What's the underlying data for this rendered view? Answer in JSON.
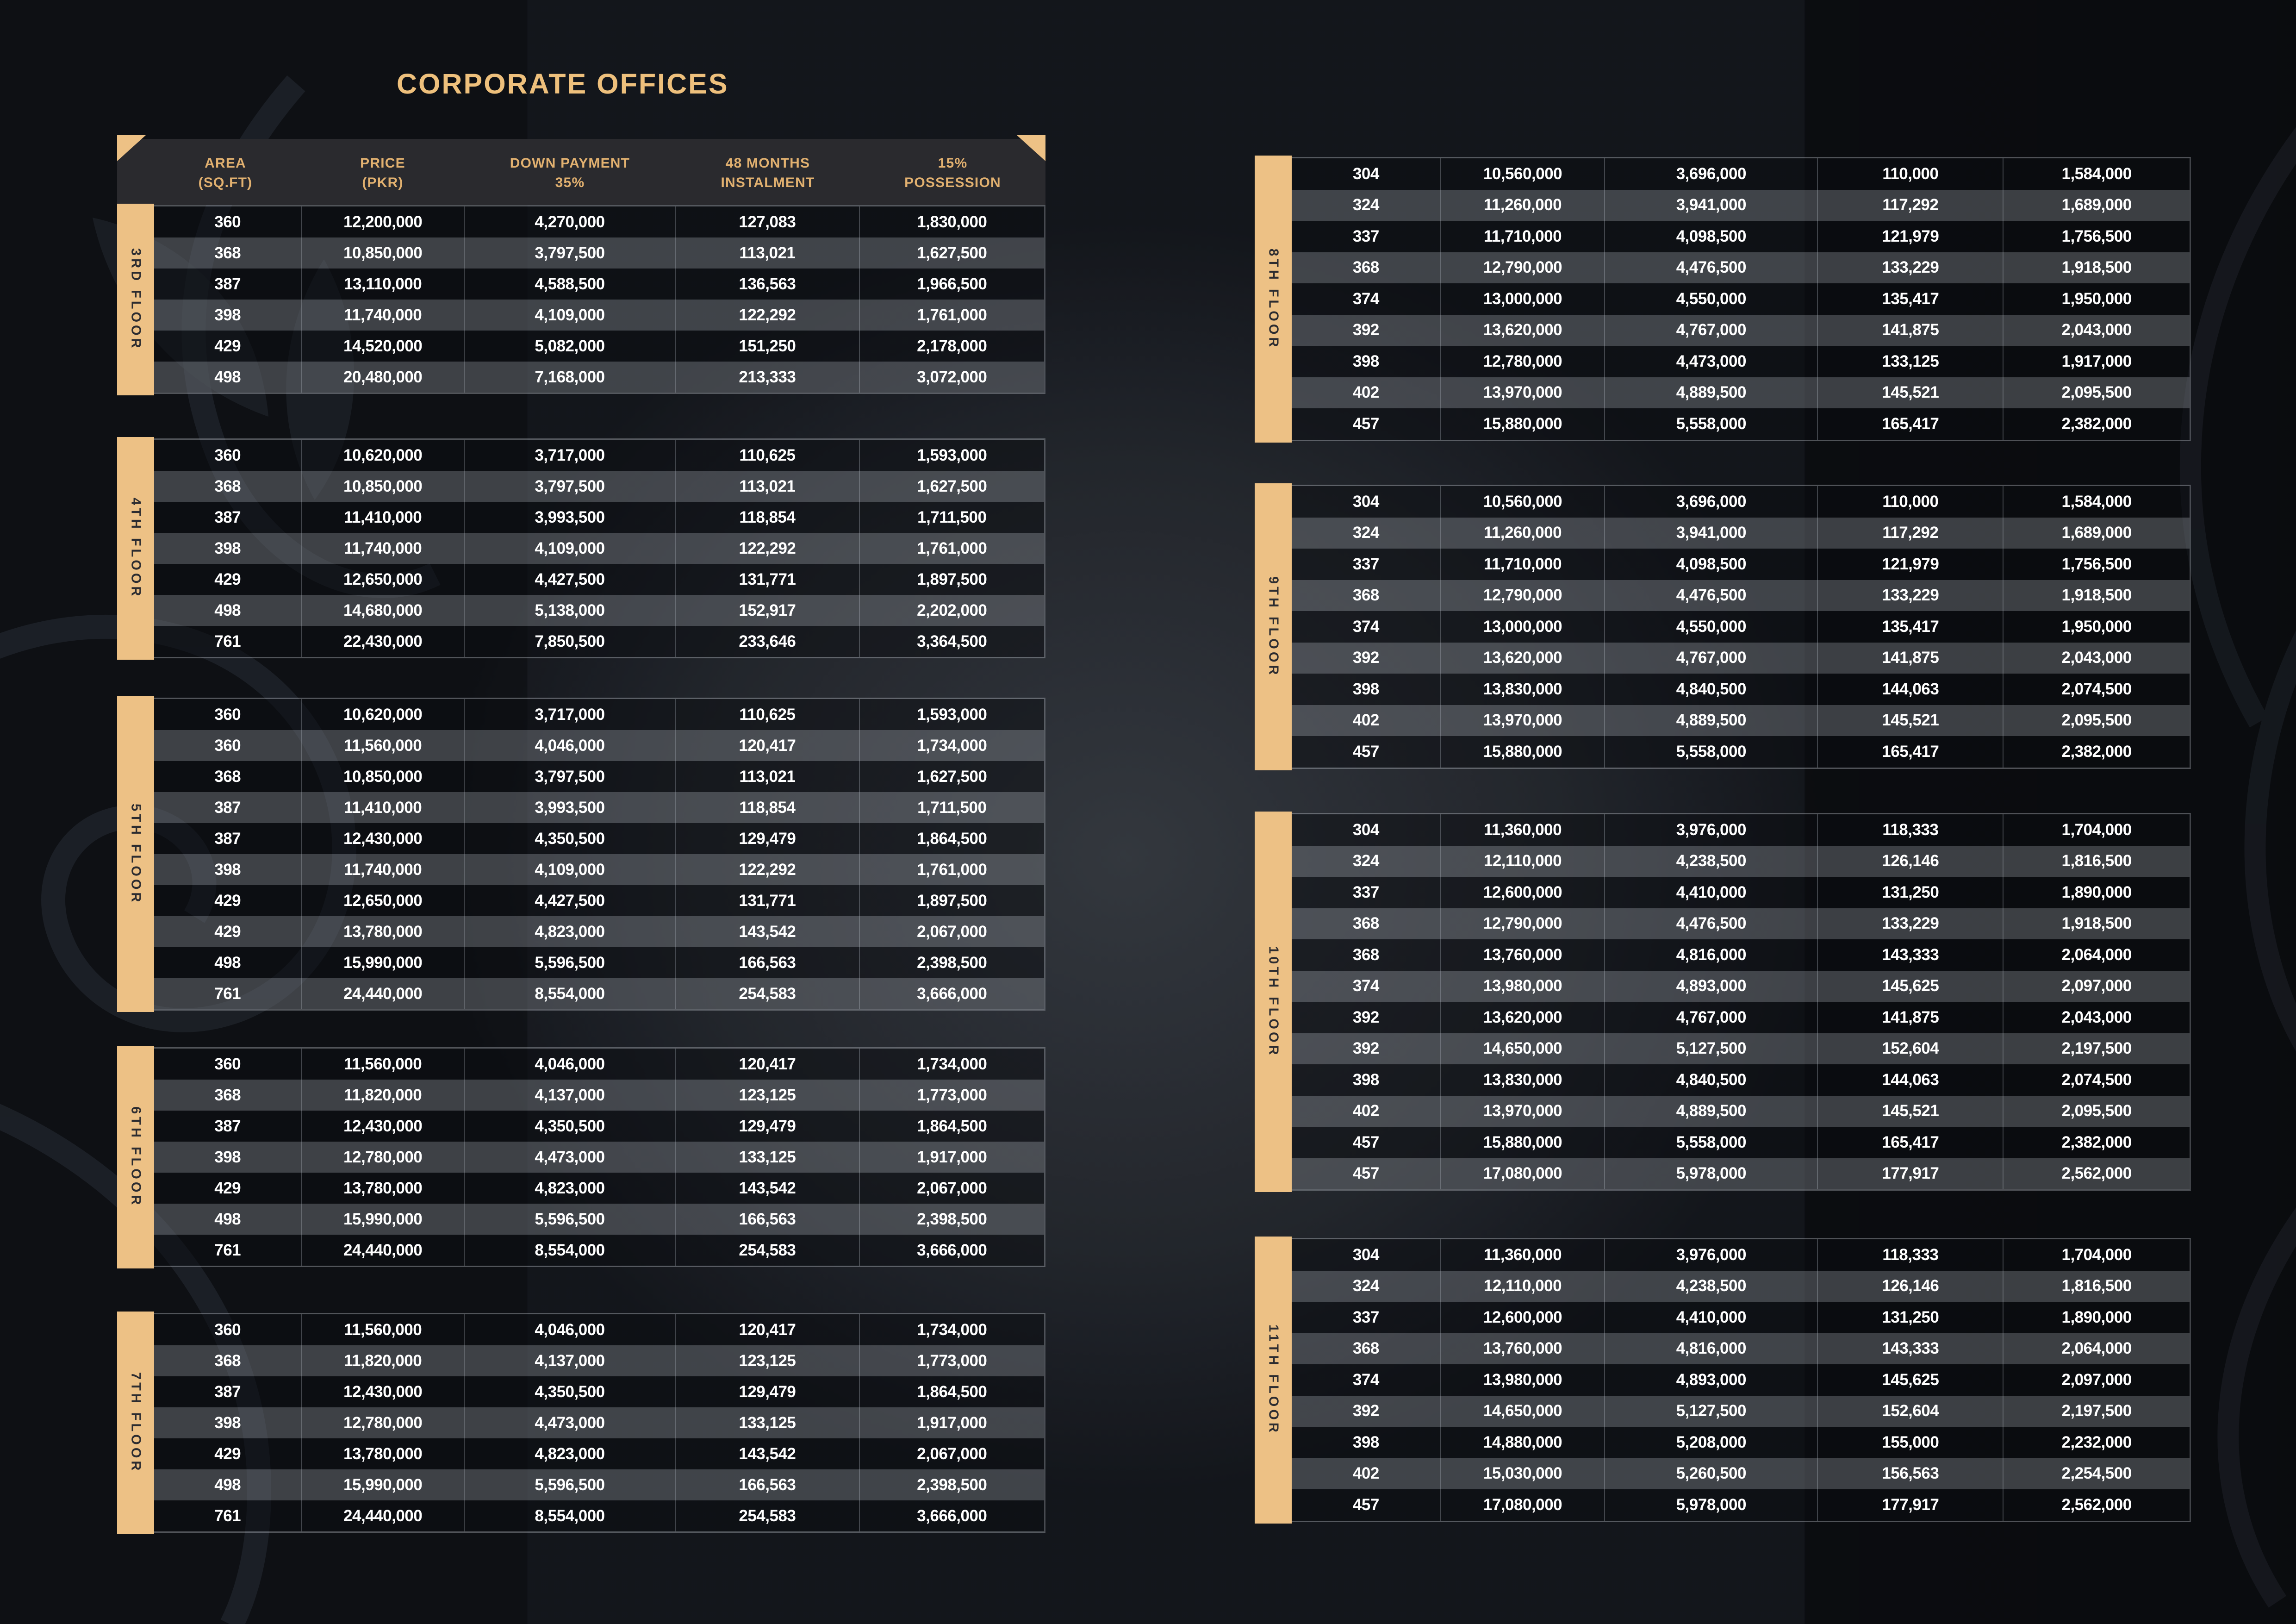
{
  "title": "CORPORATE OFFICES",
  "columns": [
    [
      "AREA",
      "(SQ.FT)"
    ],
    [
      "PRICE",
      "(PKR)"
    ],
    [
      "DOWN PAYMENT",
      "35%"
    ],
    [
      "48 MONTHS",
      "INSTALMENT"
    ],
    [
      "15%",
      "POSSESSION"
    ]
  ],
  "colors": {
    "accent_gold": "#edc185",
    "header_text_gold": "#e2b170",
    "title_gold": "#eec07c",
    "header_band": "#2a2a2e",
    "row_text": "#ffffff",
    "background": "#14171d"
  },
  "left_floors": [
    {
      "label": "3RD FLOOR",
      "rows": [
        [
          "360",
          "12,200,000",
          "4,270,000",
          "127,083",
          "1,830,000"
        ],
        [
          "368",
          "10,850,000",
          "3,797,500",
          "113,021",
          "1,627,500"
        ],
        [
          "387",
          "13,110,000",
          "4,588,500",
          "136,563",
          "1,966,500"
        ],
        [
          "398",
          "11,740,000",
          "4,109,000",
          "122,292",
          "1,761,000"
        ],
        [
          "429",
          "14,520,000",
          "5,082,000",
          "151,250",
          "2,178,000"
        ],
        [
          "498",
          "20,480,000",
          "7,168,000",
          "213,333",
          "3,072,000"
        ]
      ]
    },
    {
      "label": "4TH FLOOR",
      "rows": [
        [
          "360",
          "10,620,000",
          "3,717,000",
          "110,625",
          "1,593,000"
        ],
        [
          "368",
          "10,850,000",
          "3,797,500",
          "113,021",
          "1,627,500"
        ],
        [
          "387",
          "11,410,000",
          "3,993,500",
          "118,854",
          "1,711,500"
        ],
        [
          "398",
          "11,740,000",
          "4,109,000",
          "122,292",
          "1,761,000"
        ],
        [
          "429",
          "12,650,000",
          "4,427,500",
          "131,771",
          "1,897,500"
        ],
        [
          "498",
          "14,680,000",
          "5,138,000",
          "152,917",
          "2,202,000"
        ],
        [
          "761",
          "22,430,000",
          "7,850,500",
          "233,646",
          "3,364,500"
        ]
      ]
    },
    {
      "label": "5TH FLOOR",
      "rows": [
        [
          "360",
          "10,620,000",
          "3,717,000",
          "110,625",
          "1,593,000"
        ],
        [
          "360",
          "11,560,000",
          "4,046,000",
          "120,417",
          "1,734,000"
        ],
        [
          "368",
          "10,850,000",
          "3,797,500",
          "113,021",
          "1,627,500"
        ],
        [
          "387",
          "11,410,000",
          "3,993,500",
          "118,854",
          "1,711,500"
        ],
        [
          "387",
          "12,430,000",
          "4,350,500",
          "129,479",
          "1,864,500"
        ],
        [
          "398",
          "11,740,000",
          "4,109,000",
          "122,292",
          "1,761,000"
        ],
        [
          "429",
          "12,650,000",
          "4,427,500",
          "131,771",
          "1,897,500"
        ],
        [
          "429",
          "13,780,000",
          "4,823,000",
          "143,542",
          "2,067,000"
        ],
        [
          "498",
          "15,990,000",
          "5,596,500",
          "166,563",
          "2,398,500"
        ],
        [
          "761",
          "24,440,000",
          "8,554,000",
          "254,583",
          "3,666,000"
        ]
      ]
    },
    {
      "label": "6TH FLOOR",
      "rows": [
        [
          "360",
          "11,560,000",
          "4,046,000",
          "120,417",
          "1,734,000"
        ],
        [
          "368",
          "11,820,000",
          "4,137,000",
          "123,125",
          "1,773,000"
        ],
        [
          "387",
          "12,430,000",
          "4,350,500",
          "129,479",
          "1,864,500"
        ],
        [
          "398",
          "12,780,000",
          "4,473,000",
          "133,125",
          "1,917,000"
        ],
        [
          "429",
          "13,780,000",
          "4,823,000",
          "143,542",
          "2,067,000"
        ],
        [
          "498",
          "15,990,000",
          "5,596,500",
          "166,563",
          "2,398,500"
        ],
        [
          "761",
          "24,440,000",
          "8,554,000",
          "254,583",
          "3,666,000"
        ]
      ]
    },
    {
      "label": "7TH FLOOR",
      "rows": [
        [
          "360",
          "11,560,000",
          "4,046,000",
          "120,417",
          "1,734,000"
        ],
        [
          "368",
          "11,820,000",
          "4,137,000",
          "123,125",
          "1,773,000"
        ],
        [
          "387",
          "12,430,000",
          "4,350,500",
          "129,479",
          "1,864,500"
        ],
        [
          "398",
          "12,780,000",
          "4,473,000",
          "133,125",
          "1,917,000"
        ],
        [
          "429",
          "13,780,000",
          "4,823,000",
          "143,542",
          "2,067,000"
        ],
        [
          "498",
          "15,990,000",
          "5,596,500",
          "166,563",
          "2,398,500"
        ],
        [
          "761",
          "24,440,000",
          "8,554,000",
          "254,583",
          "3,666,000"
        ]
      ]
    }
  ],
  "right_floors": [
    {
      "label": "8TH FLOOR",
      "rows": [
        [
          "304",
          "10,560,000",
          "3,696,000",
          "110,000",
          "1,584,000"
        ],
        [
          "324",
          "11,260,000",
          "3,941,000",
          "117,292",
          "1,689,000"
        ],
        [
          "337",
          "11,710,000",
          "4,098,500",
          "121,979",
          "1,756,500"
        ],
        [
          "368",
          "12,790,000",
          "4,476,500",
          "133,229",
          "1,918,500"
        ],
        [
          "374",
          "13,000,000",
          "4,550,000",
          "135,417",
          "1,950,000"
        ],
        [
          "392",
          "13,620,000",
          "4,767,000",
          "141,875",
          "2,043,000"
        ],
        [
          "398",
          "12,780,000",
          "4,473,000",
          "133,125",
          "1,917,000"
        ],
        [
          "402",
          "13,970,000",
          "4,889,500",
          "145,521",
          "2,095,500"
        ],
        [
          "457",
          "15,880,000",
          "5,558,000",
          "165,417",
          "2,382,000"
        ]
      ]
    },
    {
      "label": "9TH FLOOR",
      "rows": [
        [
          "304",
          "10,560,000",
          "3,696,000",
          "110,000",
          "1,584,000"
        ],
        [
          "324",
          "11,260,000",
          "3,941,000",
          "117,292",
          "1,689,000"
        ],
        [
          "337",
          "11,710,000",
          "4,098,500",
          "121,979",
          "1,756,500"
        ],
        [
          "368",
          "12,790,000",
          "4,476,500",
          "133,229",
          "1,918,500"
        ],
        [
          "374",
          "13,000,000",
          "4,550,000",
          "135,417",
          "1,950,000"
        ],
        [
          "392",
          "13,620,000",
          "4,767,000",
          "141,875",
          "2,043,000"
        ],
        [
          "398",
          "13,830,000",
          "4,840,500",
          "144,063",
          "2,074,500"
        ],
        [
          "402",
          "13,970,000",
          "4,889,500",
          "145,521",
          "2,095,500"
        ],
        [
          "457",
          "15,880,000",
          "5,558,000",
          "165,417",
          "2,382,000"
        ]
      ]
    },
    {
      "label": "10TH FLOOR",
      "rows": [
        [
          "304",
          "11,360,000",
          "3,976,000",
          "118,333",
          "1,704,000"
        ],
        [
          "324",
          "12,110,000",
          "4,238,500",
          "126,146",
          "1,816,500"
        ],
        [
          "337",
          "12,600,000",
          "4,410,000",
          "131,250",
          "1,890,000"
        ],
        [
          "368",
          "12,790,000",
          "4,476,500",
          "133,229",
          "1,918,500"
        ],
        [
          "368",
          "13,760,000",
          "4,816,000",
          "143,333",
          "2,064,000"
        ],
        [
          "374",
          "13,980,000",
          "4,893,000",
          "145,625",
          "2,097,000"
        ],
        [
          "392",
          "13,620,000",
          "4,767,000",
          "141,875",
          "2,043,000"
        ],
        [
          "392",
          "14,650,000",
          "5,127,500",
          "152,604",
          "2,197,500"
        ],
        [
          "398",
          "13,830,000",
          "4,840,500",
          "144,063",
          "2,074,500"
        ],
        [
          "402",
          "13,970,000",
          "4,889,500",
          "145,521",
          "2,095,500"
        ],
        [
          "457",
          "15,880,000",
          "5,558,000",
          "165,417",
          "2,382,000"
        ],
        [
          "457",
          "17,080,000",
          "5,978,000",
          "177,917",
          "2,562,000"
        ]
      ]
    },
    {
      "label": "11TH FLOOR",
      "rows": [
        [
          "304",
          "11,360,000",
          "3,976,000",
          "118,333",
          "1,704,000"
        ],
        [
          "324",
          "12,110,000",
          "4,238,500",
          "126,146",
          "1,816,500"
        ],
        [
          "337",
          "12,600,000",
          "4,410,000",
          "131,250",
          "1,890,000"
        ],
        [
          "368",
          "13,760,000",
          "4,816,000",
          "143,333",
          "2,064,000"
        ],
        [
          "374",
          "13,980,000",
          "4,893,000",
          "145,625",
          "2,097,000"
        ],
        [
          "392",
          "14,650,000",
          "5,127,500",
          "152,604",
          "2,197,500"
        ],
        [
          "398",
          "14,880,000",
          "5,208,000",
          "155,000",
          "2,232,000"
        ],
        [
          "402",
          "15,030,000",
          "5,260,500",
          "156,563",
          "2,254,500"
        ],
        [
          "457",
          "17,080,000",
          "5,978,000",
          "177,917",
          "2,562,000"
        ]
      ]
    }
  ]
}
